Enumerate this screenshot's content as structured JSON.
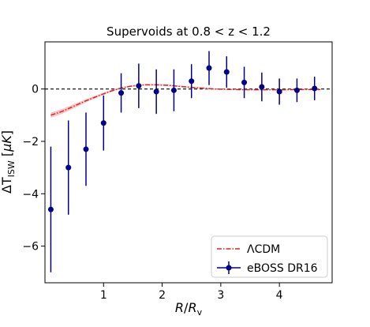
{
  "chart_data": {
    "type": "scatter",
    "title": "Supervoids at 0.8 < z < 1.2",
    "xlabel": "R/R_v",
    "ylabel": "ΔT_ISW [μK]",
    "xlim": [
      0.0,
      4.9
    ],
    "ylim": [
      -7.4,
      1.8
    ],
    "xticks": [
      1,
      2,
      3,
      4
    ],
    "yticks": [
      -6,
      -4,
      -2,
      0
    ],
    "grid": false,
    "zero_line": {
      "y": 0,
      "style": "dashed",
      "color": "#000000"
    },
    "legend": {
      "placement": "lower-right",
      "entries": [
        {
          "label": "ΛCDM",
          "style": "dash-dot line",
          "color": "#d62728"
        },
        {
          "label": "eBOSS DR16",
          "style": "errorbar",
          "color": "#00008b"
        }
      ]
    },
    "series": [
      {
        "name": "eBOSS DR16",
        "color": "#00008b",
        "kind": "errorbar",
        "x": [
          0.1,
          0.4,
          0.7,
          1.0,
          1.3,
          1.6,
          1.9,
          2.2,
          2.5,
          2.8,
          3.1,
          3.4,
          3.7,
          4.0,
          4.3,
          4.6
        ],
        "y": [
          -4.6,
          -3.0,
          -2.3,
          -1.3,
          -0.15,
          0.12,
          -0.1,
          -0.05,
          0.3,
          0.8,
          0.65,
          0.25,
          0.08,
          -0.1,
          -0.05,
          0.02
        ],
        "yerr": [
          2.4,
          1.8,
          1.4,
          1.05,
          0.75,
          0.85,
          0.85,
          0.8,
          0.65,
          0.65,
          0.6,
          0.6,
          0.55,
          0.5,
          0.45,
          0.45
        ]
      },
      {
        "name": "ΛCDM",
        "color": "#d62728",
        "band_color": "#f7b7b3",
        "kind": "line",
        "x": [
          0.1,
          0.3,
          0.5,
          0.7,
          0.9,
          1.1,
          1.3,
          1.5,
          1.7,
          1.9,
          2.1,
          2.3,
          2.5,
          2.7,
          2.9,
          3.2,
          3.6,
          4.0,
          4.4,
          4.7
        ],
        "y": [
          -1.0,
          -0.85,
          -0.65,
          -0.45,
          -0.27,
          -0.1,
          0.04,
          0.12,
          0.16,
          0.16,
          0.14,
          0.1,
          0.06,
          0.03,
          0.0,
          -0.02,
          -0.03,
          -0.03,
          -0.02,
          -0.02
        ],
        "band": [
          0.1,
          0.09,
          0.08,
          0.06,
          0.05,
          0.04,
          0.03,
          0.03,
          0.03,
          0.03,
          0.03,
          0.03,
          0.03,
          0.03,
          0.02,
          0.02,
          0.02,
          0.02,
          0.02,
          0.02
        ]
      }
    ]
  }
}
